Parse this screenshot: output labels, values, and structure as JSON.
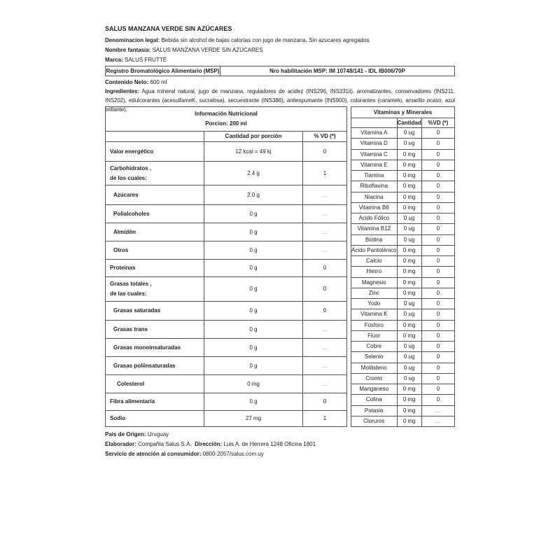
{
  "product_title": "SALUS MANZANA VERDE SIN AZÚCARES",
  "denominacion": {
    "label": "Denominacion legal:",
    "value": "Bebida sin alcohol de bajas calorías con jugo de manzana. Sin azucares agregados"
  },
  "nombre_fantasia": {
    "label": "Nombre fantasia:",
    "value": "SALUS MANZANA VERDE SIN AZÚCARES"
  },
  "marca": {
    "label": "Marca:",
    "value": "SALUS FRUTTÉ"
  },
  "registro": {
    "label": "Registro Bromatológico Alimentario (MSP)",
    "value": "Nro habilitación MSP: IM 10748/141 - IDL IB006/70P"
  },
  "contenido": {
    "label": "Contenido Neto:",
    "value": "600 ml"
  },
  "ingredientes": {
    "label": "Ingredientes:",
    "value": "Agua mineral natural, jugo de manzana, reguladores de acidez (INS296, INS331ii), aromatizantes, conservadores (INS211, INS202), edulcorantes (acesulfameK, sucralosa), secuestrante (INS386), antiespumante (INS900), colorantes (caramelo, amarillo ocaso, azul brillante)."
  },
  "nutrition": {
    "title": "Información Nutricional",
    "portion": "Porcion: 200 ml",
    "headers": [
      "",
      "Cantidad por porción",
      "% VD (*)"
    ],
    "rows": [
      {
        "name": "Valor energético",
        "qty": "12 kcal = 49 kj",
        "vd": "0",
        "indent": 0
      },
      {
        "name": "Carbohidratos ,",
        "name2": "de los cuales:",
        "qty": "2.4 g",
        "vd": "1",
        "indent": 0
      },
      {
        "name": "Azúcares",
        "qty": "2.0 g",
        "vd": "...",
        "indent": 1
      },
      {
        "name": "Polialcoholes",
        "qty": "0 g",
        "vd": "...",
        "indent": 1
      },
      {
        "name": "Almidón",
        "qty": "0 g",
        "vd": "...",
        "indent": 1
      },
      {
        "name": "Otros",
        "qty": "0 g",
        "vd": "...",
        "indent": 1
      },
      {
        "name": "Proteinas",
        "qty": "0 g",
        "vd": "0",
        "indent": 0
      },
      {
        "name": "Grasas totales ,",
        "name2": "de las cuales:",
        "qty": "0 g",
        "vd": "0",
        "indent": 0
      },
      {
        "name": "Grasas saturadas",
        "qty": "0 g",
        "vd": "0",
        "indent": 1
      },
      {
        "name": "Grasas trans",
        "qty": "0 g",
        "vd": "...",
        "indent": 1
      },
      {
        "name": "Grasas monoinsaturadas",
        "qty": "0 g",
        "vd": "...",
        "indent": 1
      },
      {
        "name": "Grasas poliinsaturadas",
        "qty": "0 g",
        "vd": "...",
        "indent": 1
      },
      {
        "name": "Colesterol",
        "qty": "0 mg",
        "vd": "...",
        "indent": 2
      },
      {
        "name": "Fibra alimentaria",
        "qty": "0 g",
        "vd": "0",
        "indent": 0
      },
      {
        "name": "Sodio",
        "qty": "27 mg",
        "vd": "1",
        "indent": 0
      }
    ]
  },
  "vitamins": {
    "title": "Vitaminas y Minerales",
    "headers": [
      "",
      "Cantidad",
      "%VD (*)"
    ],
    "rows": [
      [
        "Vitamina A",
        "0 ug",
        "0"
      ],
      [
        "Vitamina D",
        "0 ug",
        "0"
      ],
      [
        "Vitamina C",
        "0 mg",
        "0"
      ],
      [
        "Vitamina E",
        "0 mg",
        "0"
      ],
      [
        "Tiamina",
        "0 mg",
        "0"
      ],
      [
        "Riboflavina",
        "0 mg",
        "0"
      ],
      [
        "Niacina",
        "0 mg",
        "0"
      ],
      [
        "Vitamina B6",
        "0 mg",
        "0"
      ],
      [
        "Acido Fólico",
        "0 ug",
        "0"
      ],
      [
        "Vitamina B12",
        "0 ug",
        "0"
      ],
      [
        "Biotina",
        "0 ug",
        "0"
      ],
      [
        "Ácido Pantoténico",
        "0 mg",
        "0"
      ],
      [
        "Calcio",
        "0 mg",
        "0"
      ],
      [
        "Hierro",
        "0 mg",
        "0"
      ],
      [
        "Magnesio",
        "0 mg",
        "0"
      ],
      [
        "Zinc",
        "0 mg",
        "0"
      ],
      [
        "Yodo",
        "0 ug",
        "0"
      ],
      [
        "Vitamina K",
        "0 ug",
        "0"
      ],
      [
        "Fósforo",
        "0 mg",
        "0"
      ],
      [
        "Flúor",
        "0 mg",
        "0"
      ],
      [
        "Cobre",
        "0 ug",
        "0"
      ],
      [
        "Selenio",
        "0 ug",
        "0"
      ],
      [
        "Molibdeno",
        "0 ug",
        "0"
      ],
      [
        "Cromo",
        "0 ug",
        "0"
      ],
      [
        "Manganeso",
        "0 mg",
        "0"
      ],
      [
        "Colina",
        "0 mg",
        "0"
      ],
      [
        "Potasio",
        "0 mg",
        "..."
      ],
      [
        "Cloruros",
        "0 mg",
        "..."
      ]
    ]
  },
  "origen": {
    "label": "Pais de Origen:",
    "value": "Uruguay"
  },
  "elaborador": {
    "label": "Elaborador:",
    "value": "Compañía Salus S.A.",
    "dir_label": "Dirección:",
    "dir_value": "Luis A. de Herrera 1248 Oficina 1801"
  },
  "servicio": {
    "label": "Servicio de atención al consumidor:",
    "value": "0800-2057/salus.com.uy"
  }
}
